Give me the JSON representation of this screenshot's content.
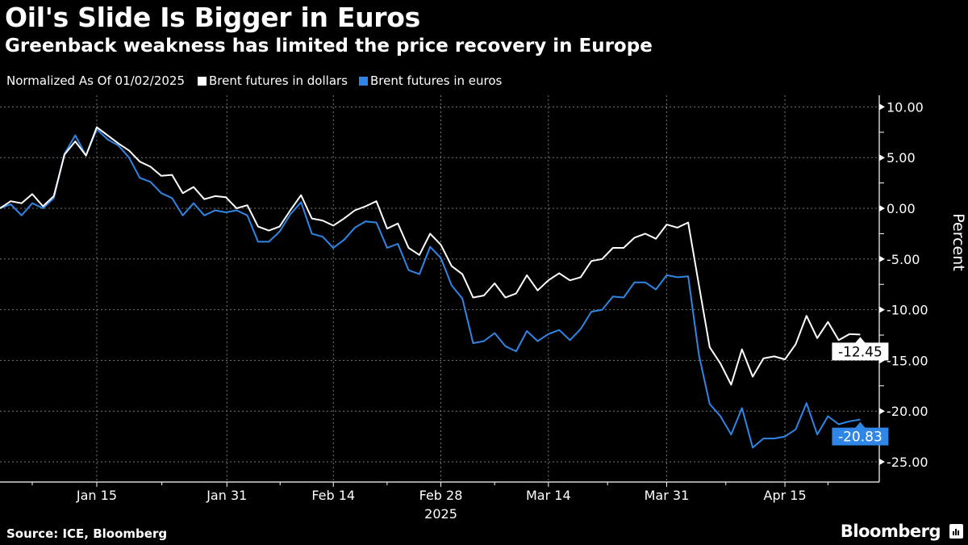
{
  "header": {
    "title": "Oil's Slide Is Bigger in Euros",
    "subtitle": "Greenback weakness has limited the price recovery in Europe"
  },
  "legend": {
    "note": "Normalized As Of 01/02/2025",
    "items": [
      {
        "label": "Brent futures in dollars",
        "color": "#ffffff"
      },
      {
        "label": "Brent futures in euros",
        "color": "#2f86e6"
      }
    ]
  },
  "footer": {
    "source": "Source: ICE, Bloomberg",
    "brand": "Bloomberg",
    "brand_icon": "bloomberg-chart-icon"
  },
  "chart_data": {
    "type": "line",
    "title": "Oil's Slide Is Bigger in Euros",
    "subtitle": "Greenback weakness has limited the price recovery in Europe",
    "xlabel": "2025",
    "ylabel": "Percent",
    "ylim": [
      -27,
      11
    ],
    "yticks": [
      "10.00",
      "5.00",
      "0.00",
      "-5.00",
      "-10.00",
      "-15.00",
      "-20.00",
      "-25.00"
    ],
    "ytick_values": [
      10,
      5,
      0,
      -5,
      -10,
      -15,
      -20,
      -25
    ],
    "xticks": [
      {
        "label": "Jan 15",
        "index": 9
      },
      {
        "label": "Jan 31",
        "index": 21.1
      },
      {
        "label": "Feb 14",
        "index": 31
      },
      {
        "label": "Feb 28",
        "index": 41
      },
      {
        "label": "Mar 14",
        "index": 51
      },
      {
        "label": "Mar 31",
        "index": 62
      },
      {
        "label": "Apr 15",
        "index": 73
      }
    ],
    "year_label": "2025",
    "year_under": "Feb 28",
    "grid": true,
    "legend_position": "top-left",
    "axis_side": "right",
    "series": [
      {
        "name": "Brent futures in dollars",
        "color": "#ffffff",
        "last_label": "-12.45",
        "values": [
          0,
          0.7,
          0.5,
          1.4,
          0.2,
          1.2,
          5.3,
          6.6,
          5.2,
          8.0,
          7.2,
          6.4,
          5.7,
          4.6,
          4.1,
          3.2,
          3.3,
          1.5,
          2.1,
          0.9,
          1.2,
          1.1,
          0.0,
          0.3,
          -1.8,
          -2.2,
          -1.8,
          -0.2,
          1.3,
          -1.0,
          -1.2,
          -1.7,
          -1.0,
          -0.2,
          0.2,
          0.7,
          -2.0,
          -1.5,
          -3.9,
          -4.6,
          -2.5,
          -3.6,
          -5.7,
          -6.5,
          -8.8,
          -8.6,
          -7.4,
          -8.8,
          -8.4,
          -6.6,
          -8.1,
          -7.1,
          -6.4,
          -7.1,
          -6.8,
          -5.2,
          -5.0,
          -3.9,
          -3.9,
          -2.9,
          -2.5,
          -3.0,
          -1.6,
          -1.9,
          -1.4,
          -7.6,
          -13.7,
          -15.3,
          -17.4,
          -13.9,
          -16.6,
          -14.8,
          -14.6,
          -14.9,
          -13.4,
          -10.6,
          -12.8,
          -11.2,
          -13.0,
          -12.4,
          -12.45
        ]
      },
      {
        "name": "Brent futures in euros",
        "color": "#2f86e6",
        "last_label": "-20.83",
        "values": [
          0,
          0.4,
          -0.7,
          0.5,
          0,
          1.0,
          5.4,
          7.2,
          5.2,
          7.8,
          6.8,
          6.2,
          5.0,
          3.0,
          2.6,
          1.5,
          1.0,
          -0.7,
          0.5,
          -0.7,
          -0.2,
          -0.4,
          -0.2,
          -0.7,
          -3.3,
          -3.3,
          -2.3,
          -0.6,
          0.6,
          -2.5,
          -2.8,
          -3.9,
          -3.1,
          -1.9,
          -1.3,
          -1.4,
          -3.9,
          -3.5,
          -6.1,
          -6.5,
          -3.8,
          -4.9,
          -7.6,
          -8.9,
          -13.3,
          -13.1,
          -12.3,
          -13.6,
          -14.1,
          -12.1,
          -13.1,
          -12.4,
          -12.0,
          -13.0,
          -11.9,
          -10.2,
          -10.0,
          -8.7,
          -8.8,
          -7.3,
          -7.3,
          -8.0,
          -6.6,
          -6.8,
          -6.7,
          -14.5,
          -19.3,
          -20.5,
          -22.3,
          -19.7,
          -23.6,
          -22.7,
          -22.7,
          -22.5,
          -21.8,
          -19.2,
          -22.3,
          -20.5,
          -21.3,
          -21.0,
          -20.83
        ]
      }
    ]
  }
}
